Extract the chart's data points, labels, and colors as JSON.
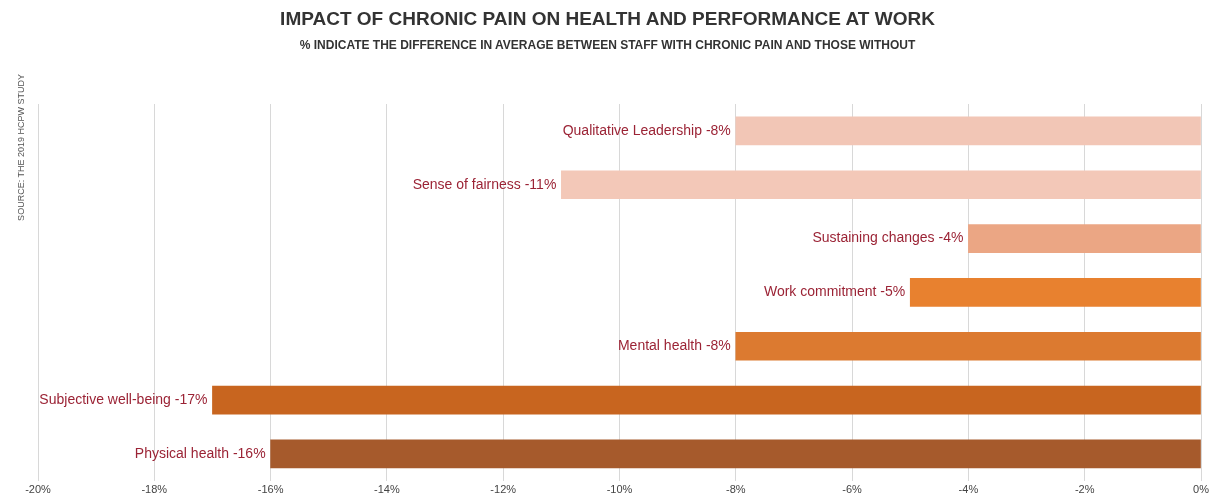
{
  "chart_data": {
    "type": "bar",
    "orientation": "horizontal",
    "title": "IMPACT OF CHRONIC PAIN ON HEALTH AND PERFORMANCE AT WORK",
    "subtitle": "% INDICATE THE DIFFERENCE IN AVERAGE BETWEEN STAFF WITH CHRONIC PAIN AND THOSE WITHOUT",
    "categories": [
      "Qualitative Leadership",
      "Sense of fairness",
      "Sustaining changes",
      "Work commitment",
      "Mental health",
      "Subjective well-being",
      "Physical health"
    ],
    "values": [
      -8,
      -11,
      -4,
      -5,
      -8,
      -17,
      -16
    ],
    "value_labels": [
      "-8%",
      "-11%",
      "-4%",
      "-5%",
      "-8%",
      "-17%",
      "-16%"
    ],
    "colors": [
      "#f2c6b6",
      "#f3c8b8",
      "#eba684",
      "#e8812f",
      "#dc7a30",
      "#c8651f",
      "#a65a2c"
    ],
    "xlim": [
      -20,
      0
    ],
    "xticks": [
      {
        "value": -20,
        "label": "-20%"
      },
      {
        "value": -18,
        "label": "-18%"
      },
      {
        "value": -16,
        "label": "-16%"
      },
      {
        "value": -14,
        "label": "-14%"
      },
      {
        "value": -12,
        "label": "-12%"
      },
      {
        "value": -10,
        "label": "-10%"
      },
      {
        "value": -8,
        "label": "-8%"
      },
      {
        "value": -6,
        "label": "-6%"
      },
      {
        "value": -4,
        "label": "-4%"
      },
      {
        "value": -2,
        "label": "-2%"
      },
      {
        "value": 0,
        "label": "0%"
      }
    ],
    "grid": "x",
    "tick_labels": "x",
    "legend": false,
    "annotations": [
      "SOURCE: THE 2019 HCPW STUDY"
    ]
  }
}
